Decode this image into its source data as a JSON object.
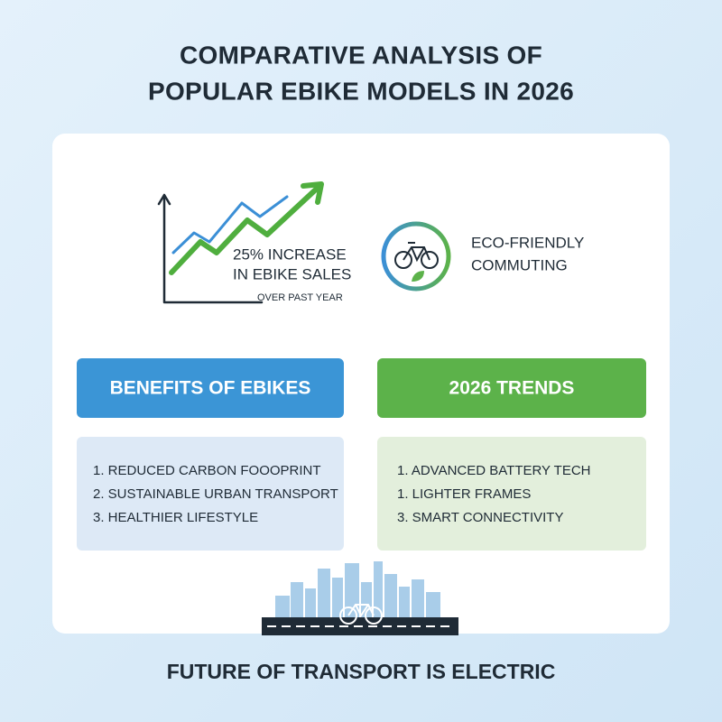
{
  "header": {
    "title_lines": [
      "COMPARATIVE ANALYSIS OF",
      "POPULAR EBIKE MODELS IN 2026"
    ]
  },
  "stats": {
    "sales": {
      "lines": [
        "25% INCREASE",
        "IN EBIKE SALES"
      ],
      "note": "OVER PAST YEAR"
    },
    "eco": {
      "lines": [
        "ECO-FRIENDLY",
        "COMMUTING"
      ]
    }
  },
  "panels": [
    {
      "title": "BENEFITS OF EBIKES",
      "items": [
        "1. REDUCED CARBON FOOOPRINT",
        "2. SUSTAINABLE URBAN TRANSPORT",
        "3. HEALTHIER LIFESTYLE"
      ]
    },
    {
      "title": "2026 TRENDS",
      "items": [
        "1. ADVANCED BATTERY TECH",
        "1. LIGHTER FRAMES",
        "3. SMART CONNECTIVITY"
      ]
    }
  ],
  "footer": "FUTURE OF TRANSPORT IS ELECTRIC"
}
